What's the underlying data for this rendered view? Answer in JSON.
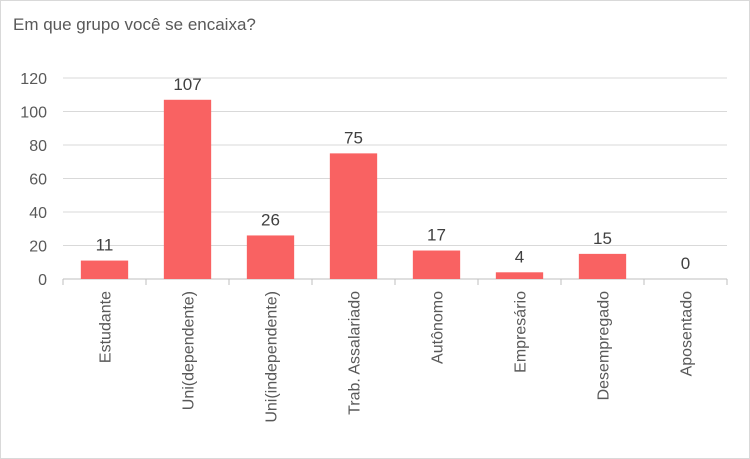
{
  "chart_data": {
    "type": "bar",
    "title": "Em que grupo você se encaixa?",
    "categories": [
      "Estudante",
      "Uni(dependente)",
      "Uni(independente)",
      "Trab. Assalariado",
      "Autônomo",
      "Empresário",
      "Desempregado",
      "Aposentado"
    ],
    "values": [
      11,
      107,
      26,
      75,
      17,
      4,
      15,
      0
    ],
    "yticks": [
      "0",
      "20",
      "40",
      "60",
      "80",
      "100",
      "120"
    ],
    "ylim": [
      0,
      120
    ],
    "grid": true,
    "bar_color": "#f96262",
    "xlabel": "",
    "ylabel": ""
  }
}
